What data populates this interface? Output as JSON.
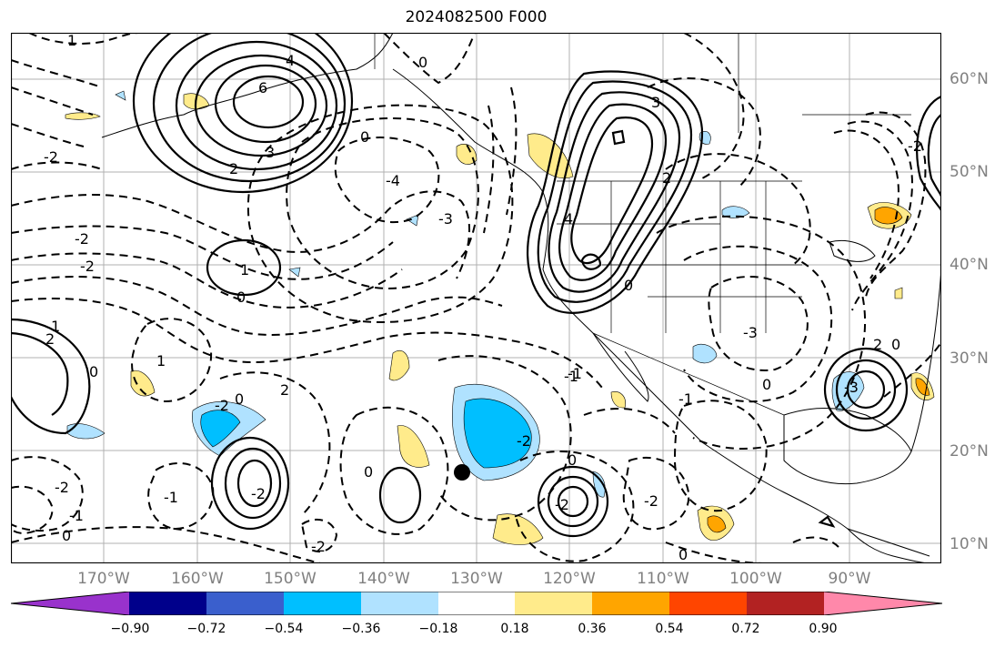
{
  "title": "2024082500 F000",
  "lat_labels": [
    "60°N",
    "50°N",
    "40°N",
    "30°N",
    "20°N",
    "10°N"
  ],
  "lon_labels": [
    "170°W",
    "160°W",
    "150°W",
    "140°W",
    "130°W",
    "120°W",
    "110°W",
    "100°W",
    "90°W"
  ],
  "colorbar": {
    "colors": [
      "#9932cc",
      "#00008b",
      "#3a5fcd",
      "#00bfff",
      "#b0e2ff",
      "#ffffff",
      "#ffeb8b",
      "#ffa500",
      "#ff4500",
      "#b22222",
      "#ff88aa"
    ],
    "tick_labels": [
      "−0.90",
      "−0.72",
      "−0.54",
      "−0.36",
      "−0.18",
      "0.18",
      "0.36",
      "0.54",
      "0.72",
      "0.90"
    ]
  },
  "contour_labels": {
    "c1": "1",
    "c2": "0",
    "c3": "6",
    "c4": "4",
    "c5": "3",
    "c6": "2",
    "c7": "0",
    "c8": "-2",
    "c9": "-2",
    "c10": "-2",
    "c11": "1",
    "c12": "0",
    "c13": "-3",
    "c14": "-4",
    "c15": "3",
    "c16": "4",
    "c17": "0",
    "c18": "2",
    "c19": "-3",
    "c20": "-1",
    "c21": "2",
    "c22": "1",
    "c23": "0",
    "c24": "-2",
    "c25": "1",
    "c26": "-2",
    "c27": "-1",
    "c28": "-1",
    "c29": "0",
    "c30": "-2",
    "c31": "0",
    "c32": "-2",
    "c33": "0",
    "c34": "2",
    "c35": "-2",
    "c36": "-1",
    "c37": "0",
    "c38": "-2",
    "c39": "0",
    "c40": "-2",
    "c41": "-1",
    "c42": "-3",
    "c43": "2",
    "c44": "0",
    "c45": "0",
    "c46": "-2"
  }
}
